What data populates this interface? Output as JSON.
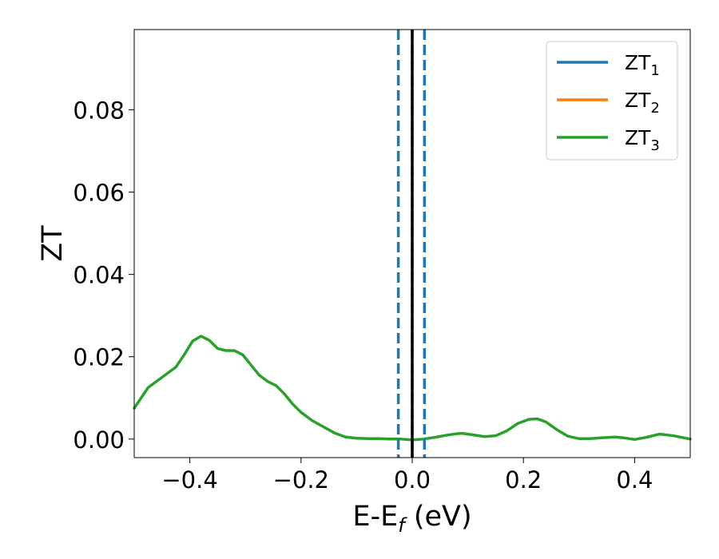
{
  "chart_data": {
    "type": "line",
    "xlabel": "E-E_f (eV)",
    "xlabel_parts": {
      "main": "E-E",
      "sub": "f",
      "suffix": " (eV)"
    },
    "ylabel": "ZT",
    "xlim": [
      -0.5,
      0.5
    ],
    "ylim": [
      -0.0045,
      0.0995
    ],
    "x_ticks": [
      -0.4,
      -0.2,
      0.0,
      0.2,
      0.4
    ],
    "x_tick_labels": [
      "−0.4",
      "−0.2",
      "0.0",
      "0.2",
      "0.4"
    ],
    "y_ticks": [
      0.0,
      0.02,
      0.04,
      0.06,
      0.08
    ],
    "y_tick_labels": [
      "0.00",
      "0.02",
      "0.04",
      "0.06",
      "0.08"
    ],
    "grid": false,
    "legend_position": "top-right",
    "series": [
      {
        "name": "ZT_1",
        "label_main": "ZT",
        "label_sub": "1",
        "color": "#1f77b4",
        "x": [],
        "y": []
      },
      {
        "name": "ZT_2",
        "label_main": "ZT",
        "label_sub": "2",
        "color": "#ff7f0e",
        "x": [],
        "y": []
      },
      {
        "name": "ZT_3",
        "label_main": "ZT",
        "label_sub": "3",
        "color": "#2ca02c",
        "x": [
          -0.5,
          -0.475,
          -0.45,
          -0.425,
          -0.41,
          -0.395,
          -0.38,
          -0.365,
          -0.35,
          -0.335,
          -0.32,
          -0.305,
          -0.29,
          -0.275,
          -0.26,
          -0.245,
          -0.23,
          -0.215,
          -0.2,
          -0.18,
          -0.16,
          -0.14,
          -0.12,
          -0.1,
          -0.08,
          -0.06,
          -0.04,
          -0.02,
          0.0,
          0.02,
          0.04,
          0.06,
          0.08,
          0.09,
          0.11,
          0.13,
          0.15,
          0.17,
          0.19,
          0.21,
          0.225,
          0.24,
          0.26,
          0.28,
          0.3,
          0.32,
          0.34,
          0.365,
          0.38,
          0.4,
          0.42,
          0.445,
          0.47,
          0.5
        ],
        "y": [
          0.0075,
          0.0125,
          0.015,
          0.0175,
          0.0205,
          0.0238,
          0.025,
          0.024,
          0.022,
          0.0215,
          0.0215,
          0.0205,
          0.018,
          0.0155,
          0.014,
          0.013,
          0.011,
          0.0085,
          0.0065,
          0.0045,
          0.003,
          0.0015,
          0.0005,
          0.0002,
          0.0001,
          0.0001,
          0.0,
          0.0,
          -0.0002,
          0.0,
          0.0004,
          0.0009,
          0.0013,
          0.0014,
          0.001,
          0.0006,
          0.0008,
          0.002,
          0.0038,
          0.0048,
          0.0049,
          0.0042,
          0.0023,
          0.0007,
          0.0001,
          0.0001,
          0.0003,
          0.0005,
          0.0003,
          -0.0001,
          0.0004,
          0.0012,
          0.0008,
          0.0
        ]
      }
    ],
    "vertical_lines": [
      {
        "x": -0.025,
        "color": "#1f77b4",
        "style": "dashed"
      },
      {
        "x": 0.0,
        "color": "#1f77b4",
        "style": "dashed"
      },
      {
        "x": 0.0,
        "color": "#000000",
        "style": "solid"
      },
      {
        "x": 0.022,
        "color": "#1f77b4",
        "style": "dashed"
      }
    ]
  }
}
